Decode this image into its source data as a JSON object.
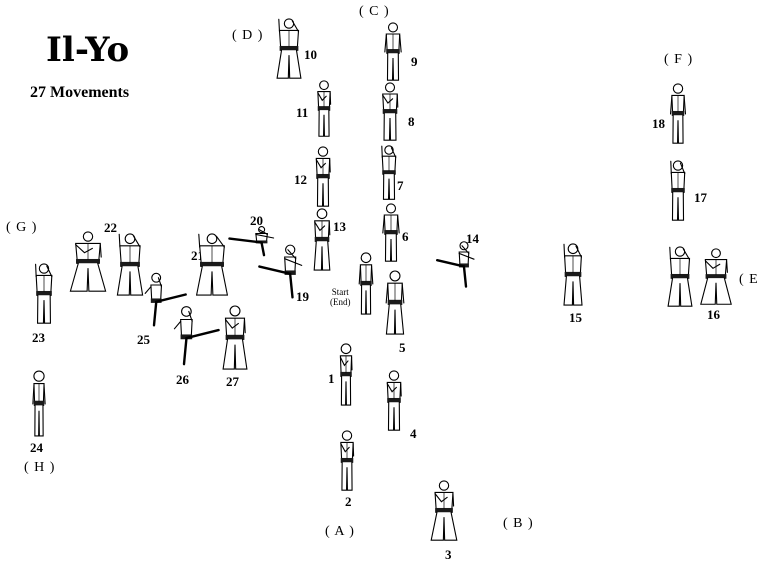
{
  "title": "Il-Yo",
  "subtitle": "27 Movements",
  "directions": {
    "A": "( A )",
    "B": "( B )",
    "C": "( C )",
    "D": "( D )",
    "E": "( E",
    "F": "( F )",
    "G": "( G )",
    "H": "( H )"
  },
  "start_label": "Start",
  "end_label": "(End)",
  "movements": [
    "1",
    "2",
    "3",
    "4",
    "5",
    "6",
    "7",
    "8",
    "9",
    "10",
    "11",
    "12",
    "13",
    "14",
    "15",
    "16",
    "17",
    "18",
    "19",
    "20",
    "21",
    "22",
    "23",
    "24",
    "25",
    "26",
    "27"
  ],
  "colors": {
    "ink": "#000000",
    "belt": "#1a1a1a",
    "background": "#ffffff"
  }
}
